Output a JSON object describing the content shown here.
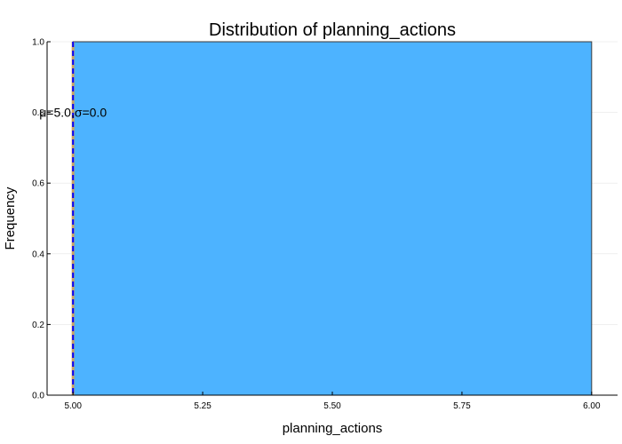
{
  "chart_data": {
    "type": "bar",
    "title": "Distribution of planning_actions",
    "xlabel": "planning_actions",
    "ylabel": "Frequency",
    "xlim": [
      4.95,
      6.05
    ],
    "ylim": [
      0.0,
      1.0
    ],
    "xticks": [
      "5.00",
      "5.25",
      "5.50",
      "5.75",
      "6.00"
    ],
    "xtick_values": [
      5.0,
      5.25,
      5.5,
      5.75,
      6.0
    ],
    "yticks": [
      "0.0",
      "0.2",
      "0.4",
      "0.6",
      "0.8",
      "1.0"
    ],
    "ytick_values": [
      0.0,
      0.2,
      0.4,
      0.6,
      0.8,
      1.0
    ],
    "bins": [
      {
        "x0": 5.0,
        "x1": 6.0,
        "value": 1.0
      }
    ],
    "bar_color": "#4DB3FF",
    "mean_line": {
      "x": 5.0,
      "color": "#0000FF",
      "style": "dashed"
    },
    "median_line": {
      "x": 5.0,
      "color": "#C8A060",
      "style": "dashed"
    },
    "annotation": {
      "text": "μ=5.0,σ=0.0",
      "x": 5.0,
      "y": 0.8
    },
    "grid": true,
    "legend": "none"
  }
}
